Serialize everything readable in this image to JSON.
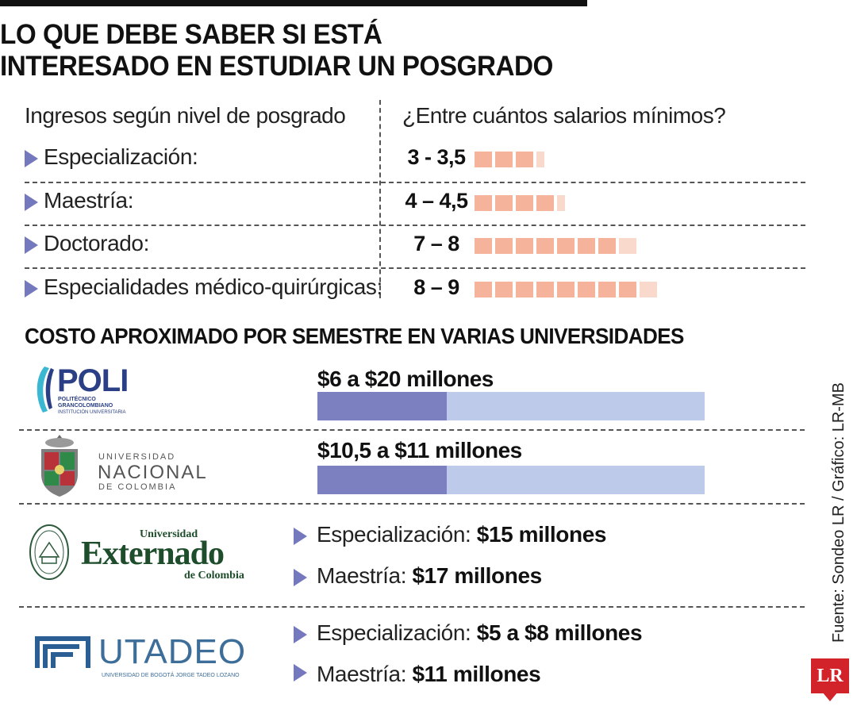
{
  "title": {
    "line1": "LO QUE DEBE SABER SI ESTÁ",
    "line2": "INTERESADO EN ESTUDIAR UN POSGRADO"
  },
  "income": {
    "left_header": "Ingresos según nivel de posgrado",
    "right_header": "¿Entre cuántos salarios mínimos?"
  },
  "costs": {
    "title": "COSTO APROXIMADO POR SEMESTRE EN VARIAS UNIVERSIDADES",
    "universities": [
      {
        "logo_icon": "poli-logo-icon",
        "logo_text": "POLI",
        "logo_sub1": "POLITÉCNICO",
        "logo_sub2": "GRANCOLOMBIANO",
        "logo_sub3": "INSTITUCIÓN UNIVERSITARIA",
        "cost_label": "$6 a $20 millones",
        "bar_fill_fraction": 0.335
      },
      {
        "logo_icon": "unal-shield-icon",
        "logo_sub1": "UNIVERSIDAD",
        "logo_text": "NACIONAL",
        "logo_sub2": "DE COLOMBIA",
        "cost_label": "$10,5 a $11 millones",
        "bar_fill_fraction": 0.335
      },
      {
        "logo_icon": "externado-seal-icon",
        "logo_sub1": "Universidad",
        "logo_text": "Externado",
        "logo_sub2": "de Colombia",
        "items": [
          {
            "label": "Especialización:",
            "value": "$15 millones"
          },
          {
            "label": "Maestría:",
            "value": "$17 millones"
          }
        ]
      },
      {
        "logo_icon": "utadeo-logo-icon",
        "logo_text": "UTADEO",
        "logo_sub1": "UNIVERSIDAD DE BOGOTÁ JORGE TADEO LOZANO",
        "items": [
          {
            "label": "Especialización:",
            "value": "$5 a $8 millones"
          },
          {
            "label": "Maestría:",
            "value": "$11 millones"
          }
        ]
      }
    ]
  },
  "source": "Fuente: Sondeo LR / Gráfico: LR-MB",
  "brand": {
    "badge": "LR",
    "accent": "#d2232a",
    "triangle_color": "#7479bd",
    "square_color": "#f4b39a",
    "bar_dark": "#7c80c0",
    "bar_light": "#bdcaea"
  },
  "chart_data": {
    "type": "bar",
    "categories": [
      "Especialización:",
      "Maestría:",
      "Doctorado:",
      "Especialidades médico-quirúrgicas:"
    ],
    "range_labels": [
      "3 - 3,5",
      "4 – 4,5",
      "7 – 8",
      "8 – 9"
    ],
    "series": [
      {
        "values_min": [
          3,
          4,
          7,
          8
        ],
        "values_max": [
          3.5,
          4.5,
          8,
          9
        ]
      }
    ],
    "title": "",
    "xlabel": "",
    "ylabel": ""
  }
}
